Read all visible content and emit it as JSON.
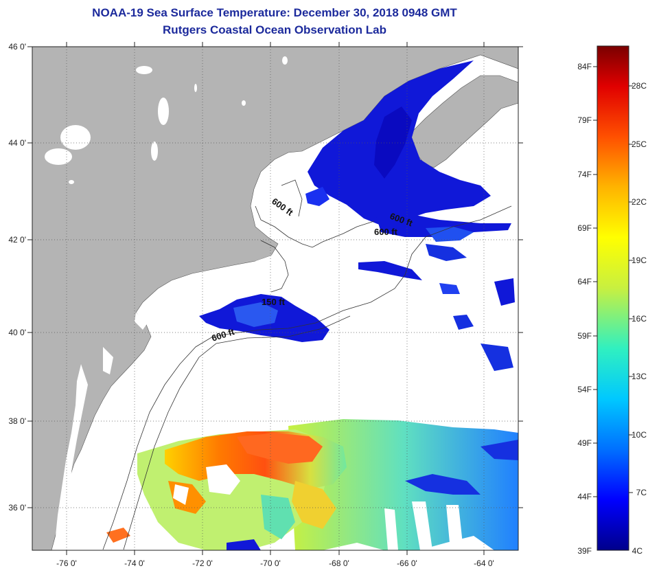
{
  "header": {
    "title": "NOAA-19 Sea Surface Temperature:  December 30, 2018 0948 GMT",
    "subtitle": "Rutgers Coastal Ocean Observation Lab"
  },
  "map": {
    "lon_range": [
      -77,
      -63
    ],
    "lat_range": [
      35,
      46
    ],
    "lat_ticks": [
      {
        "value": 46,
        "label": "46 0'"
      },
      {
        "value": 44,
        "label": "44 0'"
      },
      {
        "value": 42,
        "label": "42 0'"
      },
      {
        "value": 40,
        "label": "40 0'"
      },
      {
        "value": 38,
        "label": "38 0'"
      },
      {
        "value": 36,
        "label": "36 0'"
      }
    ],
    "lon_ticks": [
      {
        "value": -76,
        "label": "-76 0'"
      },
      {
        "value": -74,
        "label": "-74 0'"
      },
      {
        "value": -72,
        "label": "-72 0'"
      },
      {
        "value": -70,
        "label": "-70 0'"
      },
      {
        "value": -68,
        "label": "-68 0'"
      },
      {
        "value": -66,
        "label": "-66 0'"
      },
      {
        "value": -64,
        "label": "-64 0'"
      }
    ],
    "contour_labels": [
      "600 ft",
      "600 ft",
      "600 ft",
      "150 ft",
      "600 ft"
    ],
    "land_color": "#b4b4b4"
  },
  "colorbar": {
    "fahrenheit_labels": [
      "84F",
      "79F",
      "74F",
      "69F",
      "64F",
      "59F",
      "54F",
      "49F",
      "44F",
      "39F"
    ],
    "celsius_labels": [
      "28C",
      "25C",
      "22C",
      "19C",
      "16C",
      "13C",
      "10C",
      "7C",
      "4C"
    ],
    "stops": [
      "#00008b",
      "#0000ff",
      "#0070ff",
      "#00c8ff",
      "#30f0c0",
      "#c8f040",
      "#ffff00",
      "#ffb400",
      "#ff5000",
      "#e00000",
      "#7a0000"
    ]
  }
}
